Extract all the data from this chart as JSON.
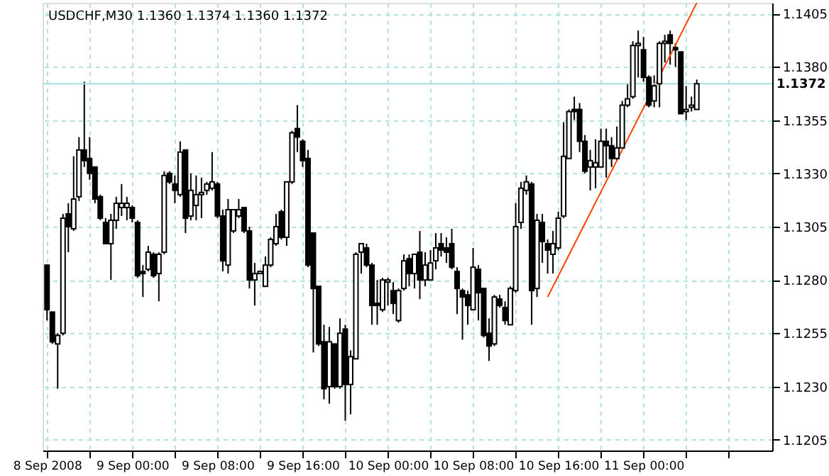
{
  "chart_data": {
    "type": "candlestick",
    "title": "USDCHF,M30  1.1360 1.1374 1.1360 1.1372",
    "color": "#000000",
    "grid": true,
    "x": [
      "2008-09-08T16:00",
      "2008-09-08T16:30",
      "2008-09-08T17:00",
      "2008-09-08T17:30",
      "2008-09-08T18:00",
      "2008-09-08T18:30",
      "2008-09-08T19:00",
      "2008-09-08T19:30",
      "2008-09-08T20:00",
      "2008-09-08T20:30",
      "2008-09-08T21:00",
      "2008-09-08T21:30",
      "2008-09-08T22:00",
      "2008-09-08T22:30",
      "2008-09-08T23:00",
      "2008-09-08T23:30",
      "2008-09-09T00:00",
      "2008-09-09T00:30",
      "2008-09-09T01:00",
      "2008-09-09T01:30",
      "2008-09-09T02:00",
      "2008-09-09T02:30",
      "2008-09-09T03:00",
      "2008-09-09T03:30",
      "2008-09-09T04:00",
      "2008-09-09T04:30",
      "2008-09-09T05:00",
      "2008-09-09T05:30",
      "2008-09-09T06:00",
      "2008-09-09T06:30",
      "2008-09-09T07:00",
      "2008-09-09T07:30",
      "2008-09-09T08:00",
      "2008-09-09T08:30",
      "2008-09-09T09:00",
      "2008-09-09T09:30",
      "2008-09-09T10:00",
      "2008-09-09T10:30",
      "2008-09-09T11:00",
      "2008-09-09T11:30",
      "2008-09-09T12:00",
      "2008-09-09T12:30",
      "2008-09-09T13:00",
      "2008-09-09T13:30",
      "2008-09-09T14:00",
      "2008-09-09T14:30",
      "2008-09-09T15:00",
      "2008-09-09T15:30",
      "2008-09-09T16:00",
      "2008-09-09T16:30",
      "2008-09-09T17:00",
      "2008-09-09T17:30",
      "2008-09-09T18:00",
      "2008-09-09T18:30",
      "2008-09-09T19:00",
      "2008-09-09T19:30",
      "2008-09-09T20:00",
      "2008-09-09T20:30",
      "2008-09-09T21:00",
      "2008-09-09T21:30",
      "2008-09-09T22:00",
      "2008-09-09T22:30",
      "2008-09-09T23:00",
      "2008-09-09T23:30",
      "2008-09-10T00:00",
      "2008-09-10T00:30",
      "2008-09-10T01:00",
      "2008-09-10T01:30",
      "2008-09-10T02:00",
      "2008-09-10T02:30",
      "2008-09-10T03:00",
      "2008-09-10T03:30",
      "2008-09-10T04:00",
      "2008-09-10T04:30",
      "2008-09-10T05:00",
      "2008-09-10T05:30",
      "2008-09-10T06:00",
      "2008-09-10T06:30",
      "2008-09-10T07:00",
      "2008-09-10T07:30",
      "2008-09-10T08:00",
      "2008-09-10T08:30",
      "2008-09-10T09:00",
      "2008-09-10T09:30",
      "2008-09-10T10:00",
      "2008-09-10T10:30",
      "2008-09-10T11:00",
      "2008-09-10T11:30",
      "2008-09-10T12:00",
      "2008-09-10T12:30",
      "2008-09-10T13:00",
      "2008-09-10T13:30",
      "2008-09-10T14:00",
      "2008-09-10T14:30",
      "2008-09-10T15:00",
      "2008-09-10T15:30",
      "2008-09-10T16:00",
      "2008-09-10T16:30",
      "2008-09-10T17:00",
      "2008-09-10T17:30",
      "2008-09-10T18:00",
      "2008-09-10T18:30",
      "2008-09-10T19:00",
      "2008-09-10T19:30",
      "2008-09-10T20:00",
      "2008-09-10T20:30",
      "2008-09-10T21:00",
      "2008-09-10T21:30",
      "2008-09-10T22:00",
      "2008-09-10T22:30",
      "2008-09-10T23:00",
      "2008-09-10T23:30",
      "2008-09-11T00:00",
      "2008-09-11T00:30",
      "2008-09-11T01:00",
      "2008-09-11T01:30",
      "2008-09-11T02:00",
      "2008-09-11T02:30",
      "2008-09-11T03:00",
      "2008-09-11T03:30",
      "2008-09-11T04:00",
      "2008-09-11T04:30",
      "2008-09-11T05:00"
    ],
    "ohlc": [
      [
        1.1287,
        1.1287,
        1.1261,
        1.1266
      ],
      [
        1.1265,
        1.1265,
        1.125,
        1.1251
      ],
      [
        1.125,
        1.1255,
        1.1229,
        1.1254
      ],
      [
        1.1255,
        1.1311,
        1.1254,
        1.1309
      ],
      [
        1.1311,
        1.1316,
        1.1293,
        1.1305
      ],
      [
        1.1304,
        1.1338,
        1.1303,
        1.1318
      ],
      [
        1.1319,
        1.1347,
        1.1317,
        1.1341
      ],
      [
        1.1341,
        1.1373,
        1.1333,
        1.1336
      ],
      [
        1.1337,
        1.1347,
        1.1327,
        1.133
      ],
      [
        1.1333,
        1.1333,
        1.1316,
        1.1318
      ],
      [
        1.1319,
        1.132,
        1.1308,
        1.1309
      ],
      [
        1.1307,
        1.1309,
        1.1297,
        1.1297
      ],
      [
        1.1297,
        1.1311,
        1.128,
        1.1308
      ],
      [
        1.1308,
        1.1319,
        1.1304,
        1.1316
      ],
      [
        1.1314,
        1.1325,
        1.131,
        1.1316
      ],
      [
        1.1314,
        1.1319,
        1.1308,
        1.1316
      ],
      [
        1.1314,
        1.1315,
        1.1307,
        1.1309
      ],
      [
        1.1307,
        1.1308,
        1.1281,
        1.1282
      ],
      [
        1.1284,
        1.1287,
        1.1272,
        1.1283
      ],
      [
        1.1285,
        1.1296,
        1.1284,
        1.1293
      ],
      [
        1.1292,
        1.1293,
        1.1281,
        1.1282
      ],
      [
        1.1283,
        1.1293,
        1.127,
        1.1292
      ],
      [
        1.1293,
        1.1331,
        1.1292,
        1.1329
      ],
      [
        1.133,
        1.1331,
        1.1325,
        1.1326
      ],
      [
        1.1325,
        1.1329,
        1.1316,
        1.1322
      ],
      [
        1.132,
        1.1345,
        1.1319,
        1.134
      ],
      [
        1.1341,
        1.1341,
        1.1302,
        1.1309
      ],
      [
        1.131,
        1.133,
        1.1308,
        1.1322
      ],
      [
        1.1315,
        1.1329,
        1.1308,
        1.132
      ],
      [
        1.132,
        1.1328,
        1.1309,
        1.1321
      ],
      [
        1.1322,
        1.1326,
        1.132,
        1.1325
      ],
      [
        1.1323,
        1.134,
        1.1322,
        1.1326
      ],
      [
        1.1325,
        1.1326,
        1.1309,
        1.131
      ],
      [
        1.131,
        1.1313,
        1.1284,
        1.1289
      ],
      [
        1.1287,
        1.1318,
        1.1283,
        1.1313
      ],
      [
        1.1303,
        1.1313,
        1.1302,
        1.1313
      ],
      [
        1.131,
        1.1318,
        1.1309,
        1.1313
      ],
      [
        1.1314,
        1.1314,
        1.1302,
        1.1303
      ],
      [
        1.1303,
        1.1305,
        1.1276,
        1.128
      ],
      [
        1.128,
        1.1288,
        1.1268,
        1.1283
      ],
      [
        1.1283,
        1.1284,
        1.1283,
        1.1284
      ],
      [
        1.1277,
        1.1291,
        1.1277,
        1.1287
      ],
      [
        1.1287,
        1.13,
        1.1286,
        1.1299
      ],
      [
        1.1297,
        1.1311,
        1.1296,
        1.1305
      ],
      [
        1.1312,
        1.1313,
        1.1299,
        1.13
      ],
      [
        1.13,
        1.1326,
        1.1296,
        1.1326
      ],
      [
        1.1326,
        1.135,
        1.1325,
        1.1349
      ],
      [
        1.1351,
        1.1362,
        1.134,
        1.1347
      ],
      [
        1.1345,
        1.1346,
        1.1333,
        1.1336
      ],
      [
        1.1337,
        1.1341,
        1.1286,
        1.1287
      ],
      [
        1.1302,
        1.1302,
        1.1246,
        1.1276
      ],
      [
        1.1277,
        1.1277,
        1.1249,
        1.125
      ],
      [
        1.1251,
        1.1259,
        1.1224,
        1.1229
      ],
      [
        1.123,
        1.1258,
        1.1222,
        1.1251
      ],
      [
        1.125,
        1.125,
        1.1229,
        1.123
      ],
      [
        1.123,
        1.1262,
        1.1229,
        1.1255
      ],
      [
        1.1257,
        1.1259,
        1.1214,
        1.1231
      ],
      [
        1.1231,
        1.1247,
        1.1217,
        1.1244
      ],
      [
        1.1243,
        1.1293,
        1.1243,
        1.1292
      ],
      [
        1.1293,
        1.1297,
        1.1283,
        1.1297
      ],
      [
        1.1295,
        1.1297,
        1.1286,
        1.1287
      ],
      [
        1.1287,
        1.1288,
        1.1259,
        1.1268
      ],
      [
        1.1269,
        1.128,
        1.1259,
        1.1268
      ],
      [
        1.1266,
        1.1281,
        1.1265,
        1.128
      ],
      [
        1.1279,
        1.1281,
        1.1268,
        1.128
      ],
      [
        1.1275,
        1.1279,
        1.1264,
        1.1269
      ],
      [
        1.1261,
        1.1276,
        1.126,
        1.1275
      ],
      [
        1.1276,
        1.1292,
        1.1275,
        1.1289
      ],
      [
        1.129,
        1.1292,
        1.1277,
        1.1283
      ],
      [
        1.1283,
        1.1292,
        1.1276,
        1.1292
      ],
      [
        1.1293,
        1.1303,
        1.1271,
        1.128
      ],
      [
        1.128,
        1.1293,
        1.1277,
        1.1287
      ],
      [
        1.128,
        1.1294,
        1.128,
        1.1288
      ],
      [
        1.1289,
        1.1302,
        1.1285,
        1.1295
      ],
      [
        1.1297,
        1.1302,
        1.1291,
        1.1294
      ],
      [
        1.1295,
        1.13,
        1.1288,
        1.1293
      ],
      [
        1.1297,
        1.1304,
        1.1285,
        1.1286
      ],
      [
        1.1284,
        1.1286,
        1.1264,
        1.1276
      ],
      [
        1.1275,
        1.1276,
        1.1252,
        1.1272
      ],
      [
        1.1273,
        1.1275,
        1.1259,
        1.1268
      ],
      [
        1.1266,
        1.1295,
        1.1266,
        1.1286
      ],
      [
        1.1285,
        1.1287,
        1.1261,
        1.1274
      ],
      [
        1.1276,
        1.1276,
        1.1253,
        1.1254
      ],
      [
        1.1255,
        1.1262,
        1.1242,
        1.1249
      ],
      [
        1.125,
        1.1273,
        1.1249,
        1.1272
      ],
      [
        1.1271,
        1.1273,
        1.1267,
        1.1268
      ],
      [
        1.1267,
        1.127,
        1.1259,
        1.1261
      ],
      [
        1.1259,
        1.1277,
        1.1259,
        1.1276
      ],
      [
        1.1275,
        1.1316,
        1.1274,
        1.1305
      ],
      [
        1.1307,
        1.1326,
        1.1304,
        1.1323
      ],
      [
        1.1322,
        1.1329,
        1.132,
        1.1326
      ],
      [
        1.1325,
        1.1326,
        1.1259,
        1.1275
      ],
      [
        1.1276,
        1.1311,
        1.1272,
        1.1308
      ],
      [
        1.1307,
        1.1311,
        1.1288,
        1.1298
      ],
      [
        1.1297,
        1.1299,
        1.1283,
        1.1294
      ],
      [
        1.1292,
        1.1303,
        1.1283,
        1.1297
      ],
      [
        1.1295,
        1.1312,
        1.1294,
        1.1309
      ],
      [
        1.131,
        1.1354,
        1.1309,
        1.1338
      ],
      [
        1.1337,
        1.136,
        1.1337,
        1.1359
      ],
      [
        1.136,
        1.1366,
        1.1355,
        1.1359
      ],
      [
        1.136,
        1.1363,
        1.134,
        1.1345
      ],
      [
        1.1345,
        1.1348,
        1.133,
        1.1331
      ],
      [
        1.1333,
        1.1341,
        1.1322,
        1.1336
      ],
      [
        1.1333,
        1.1346,
        1.1323,
        1.1335
      ],
      [
        1.1333,
        1.1351,
        1.1333,
        1.1345
      ],
      [
        1.1345,
        1.1351,
        1.1328,
        1.1343
      ],
      [
        1.1343,
        1.1347,
        1.1333,
        1.1337
      ],
      [
        1.1337,
        1.1352,
        1.1336,
        1.1342
      ],
      [
        1.1342,
        1.1364,
        1.1342,
        1.1362
      ],
      [
        1.1362,
        1.1372,
        1.1361,
        1.1365
      ],
      [
        1.1366,
        1.1392,
        1.1365,
        1.139
      ],
      [
        1.139,
        1.1397,
        1.1375,
        1.1391
      ],
      [
        1.1388,
        1.1394,
        1.1373,
        1.1375
      ],
      [
        1.1375,
        1.1376,
        1.1361,
        1.1362
      ],
      [
        1.1364,
        1.1376,
        1.1361,
        1.1371
      ],
      [
        1.1372,
        1.1392,
        1.1361,
        1.1391
      ],
      [
        1.1391,
        1.1395,
        1.1382,
        1.1392
      ],
      [
        1.1395,
        1.1397,
        1.1381,
        1.1391
      ],
      [
        1.1389,
        1.1391,
        1.138,
        1.1388
      ],
      [
        1.1387,
        1.1387,
        1.1358,
        1.1358
      ],
      [
        1.1359,
        1.1371,
        1.1355,
        1.136
      ],
      [
        1.1361,
        1.1366,
        1.1359,
        1.1362
      ],
      [
        1.136,
        1.1374,
        1.136,
        1.1372
      ]
    ],
    "series": [
      {
        "type": "line",
        "color": "#ff4500",
        "x": [
          "2008-09-10T15:00",
          "2008-09-11T05:00"
        ],
        "values": [
          1.1272,
          1.141
        ]
      }
    ],
    "ref_lines": [
      {
        "axis": "y",
        "value": 1.1372,
        "label": "1.1372",
        "color": "#a8dede"
      }
    ],
    "xlim": [
      "2008-09-08T15:35",
      "2008-09-11T12:05"
    ],
    "xticks": [
      {
        "value": "2008-09-08T16:00",
        "label": "8 Sep 2008"
      },
      {
        "value": "2008-09-08T20:00",
        "label": null
      },
      {
        "value": "2008-09-09T00:00",
        "label": "9 Sep 00:00"
      },
      {
        "value": "2008-09-09T04:00",
        "label": null
      },
      {
        "value": "2008-09-09T08:00",
        "label": "9 Sep 08:00"
      },
      {
        "value": "2008-09-09T12:00",
        "label": null
      },
      {
        "value": "2008-09-09T16:00",
        "label": "9 Sep 16:00"
      },
      {
        "value": "2008-09-09T20:00",
        "label": null
      },
      {
        "value": "2008-09-10T00:00",
        "label": "10 Sep 00:00"
      },
      {
        "value": "2008-09-10T04:00",
        "label": null
      },
      {
        "value": "2008-09-10T08:00",
        "label": "10 Sep 08:00"
      },
      {
        "value": "2008-09-10T12:00",
        "label": null
      },
      {
        "value": "2008-09-10T16:00",
        "label": "10 Sep 16:00"
      },
      {
        "value": "2008-09-10T20:00",
        "label": null
      },
      {
        "value": "2008-09-11T00:00",
        "label": "11 Sep 00:00"
      },
      {
        "value": "2008-09-11T04:00",
        "label": null
      },
      {
        "value": "2008-09-11T08:00",
        "label": null
      }
    ],
    "ylim": [
      1.12,
      1.141
    ],
    "yticks": [
      {
        "value": 1.1205,
        "label": "1.1205"
      },
      {
        "value": 1.123,
        "label": "1.1230"
      },
      {
        "value": 1.1255,
        "label": "1.1255"
      },
      {
        "value": 1.128,
        "label": "1.1280"
      },
      {
        "value": 1.1305,
        "label": "1.1305"
      },
      {
        "value": 1.133,
        "label": "1.1330"
      },
      {
        "value": 1.1355,
        "label": "1.1355"
      },
      {
        "value": 1.138,
        "label": "1.1380"
      },
      {
        "value": 1.1405,
        "label": "1.1405"
      }
    ]
  }
}
